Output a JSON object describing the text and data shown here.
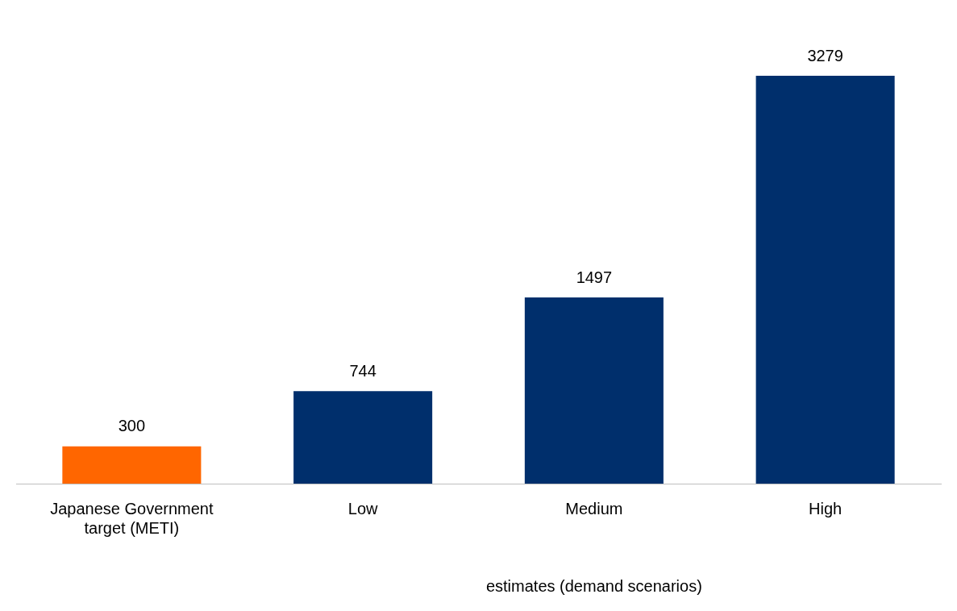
{
  "chart_data": {
    "type": "bar",
    "categories": [
      "Japanese Government target (METI)",
      "Low",
      "Medium",
      "High"
    ],
    "values": [
      300,
      744,
      1497,
      3279
    ],
    "colors": [
      "#ff6600",
      "#002f6c",
      "#002f6c",
      "#002f6c"
    ],
    "data_labels": true,
    "grid": false,
    "legend": false,
    "tick_labels": "x",
    "annotations": [
      "estimates (demand scenarios)"
    ]
  }
}
